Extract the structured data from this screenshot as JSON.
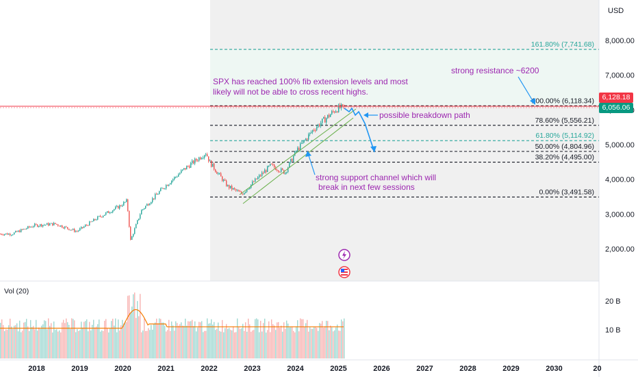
{
  "currency": "USD",
  "price_badges": {
    "upper": "6,128.18",
    "lower": "6,056.06"
  },
  "colors": {
    "up": "#26a69a",
    "down": "#ef5350",
    "fib_green": "#26a69a",
    "annotation": "#9c27b0",
    "arrow": "#2196f3",
    "volume_ma": "#f57c00",
    "badge_upper": "#f23645",
    "badge_lower": "#089981"
  },
  "volume_label": "Vol (20)",
  "annotations": {
    "main": [
      "SPX has reached 100% fib extension levels and most",
      "likely will not be able to cross recent highs."
    ],
    "resistance": "strong resistance ~6200",
    "breakdown": "possible breakdown path",
    "support": [
      "strong support channel which will",
      "break in next few sessions"
    ]
  },
  "icons": [
    "lightning-icon",
    "us-flag-icon"
  ],
  "chart_data": {
    "type": "line",
    "series_kind": "candlestick (approximated)",
    "x": [
      "2017-06",
      "2017-12",
      "2018-06",
      "2018-12",
      "2019-06",
      "2019-12",
      "2020-02",
      "2020-03",
      "2020-06",
      "2020-12",
      "2021-06",
      "2021-12",
      "2022-01",
      "2022-06",
      "2022-10",
      "2023-01",
      "2023-06",
      "2023-10",
      "2024-01",
      "2024-06",
      "2024-12",
      "2025-01",
      "2025-02"
    ],
    "values": [
      2430,
      2670,
      2720,
      2500,
      2900,
      3230,
      3380,
      2240,
      3100,
      3750,
      4300,
      4770,
      4500,
      3800,
      3580,
      3900,
      4400,
      4200,
      4800,
      5450,
      6000,
      6060,
      6056
    ],
    "x_ticks": [
      "2018",
      "2019",
      "2020",
      "2021",
      "2022",
      "2023",
      "2024",
      "2025",
      "2026",
      "2027",
      "2028",
      "2029",
      "2030",
      "20"
    ],
    "y_ticks": [
      "2,000.00",
      "3,000.00",
      "4,000.00",
      "5,000.00",
      "6,000.00",
      "7,000.00",
      "8,000.00"
    ],
    "ylim": [
      1300,
      8500
    ],
    "fib_levels": [
      {
        "label": "161.80% (7,741.68)",
        "value": 7741.68,
        "style": "green"
      },
      {
        "label": "100.00% (6,118.34)",
        "value": 6118.34,
        "style": "black"
      },
      {
        "label": "78.60% (5,556.21)",
        "value": 5556.21,
        "style": "black"
      },
      {
        "label": "61.80% (5,114.92)",
        "value": 5114.92,
        "style": "green"
      },
      {
        "label": "50.00% (4,804.96)",
        "value": 4804.96,
        "style": "black"
      },
      {
        "label": "38.20% (4,495.00)",
        "value": 4495.0,
        "style": "black"
      },
      {
        "label": "0.00% (3,491.58)",
        "value": 3491.58,
        "style": "black"
      }
    ],
    "volume": {
      "label": "Vol (20)",
      "ticks": [
        "20 B",
        "10 B"
      ],
      "ylim": [
        0,
        24
      ]
    }
  }
}
